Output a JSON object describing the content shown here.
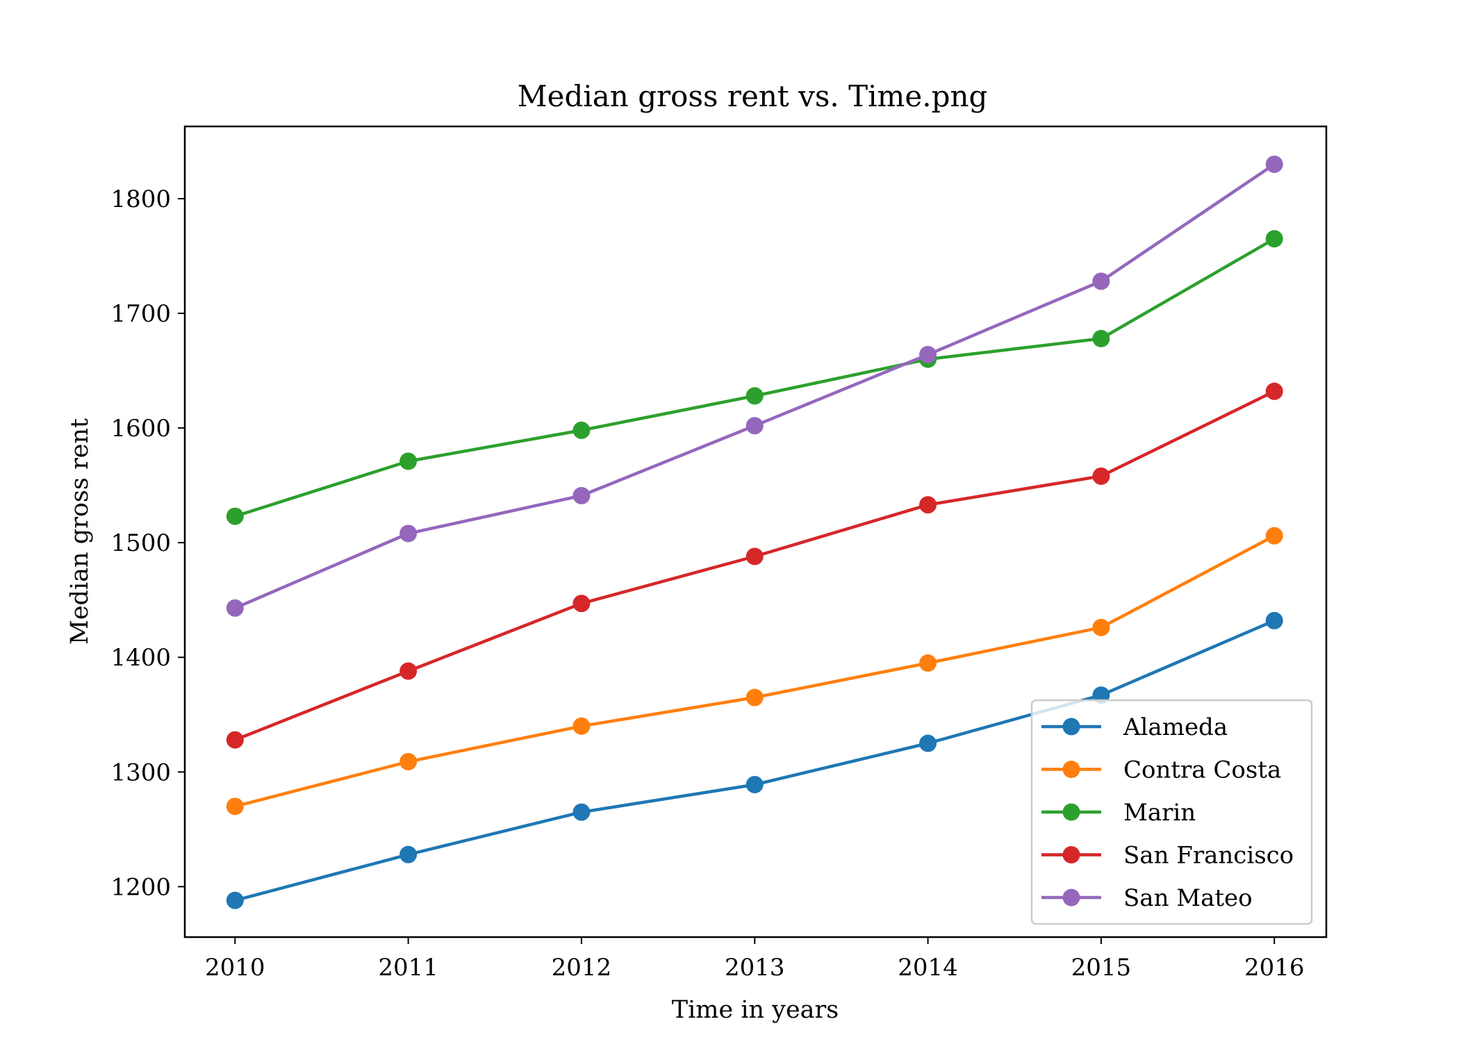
{
  "chart_data": {
    "type": "line",
    "title": "Median gross rent vs. Time.png",
    "xlabel": "Time in years",
    "ylabel": "Median gross rent",
    "x": [
      2010,
      2011,
      2012,
      2013,
      2014,
      2015,
      2016
    ],
    "x_tick_labels": [
      "2010",
      "2011",
      "2012",
      "2013",
      "2014",
      "2015",
      "2016"
    ],
    "y_ticks": [
      1200,
      1300,
      1400,
      1500,
      1600,
      1700,
      1800
    ],
    "y_tick_labels": [
      "1200",
      "1300",
      "1400",
      "1500",
      "1600",
      "1700",
      "1800"
    ],
    "xlim": [
      2009.71,
      2016.3
    ],
    "ylim": [
      1156,
      1863
    ],
    "grid": false,
    "legend_position": "lower-right",
    "markers": true,
    "series": [
      {
        "name": "Alameda",
        "color": "#1f77b4",
        "values": [
          1188,
          1228,
          1265,
          1289,
          1325,
          1367,
          1432
        ]
      },
      {
        "name": "Contra Costa",
        "color": "#ff7f0e",
        "values": [
          1270,
          1309,
          1340,
          1365,
          1395,
          1426,
          1506
        ]
      },
      {
        "name": "Marin",
        "color": "#2ca02c",
        "values": [
          1523,
          1571,
          1598,
          1628,
          1660,
          1678,
          1765
        ]
      },
      {
        "name": "San Francisco",
        "color": "#d62728",
        "values": [
          1328,
          1388,
          1447,
          1488,
          1533,
          1558,
          1632
        ]
      },
      {
        "name": "San Mateo",
        "color": "#9467bd",
        "values": [
          1443,
          1508,
          1541,
          1602,
          1664,
          1728,
          1830
        ]
      }
    ]
  }
}
